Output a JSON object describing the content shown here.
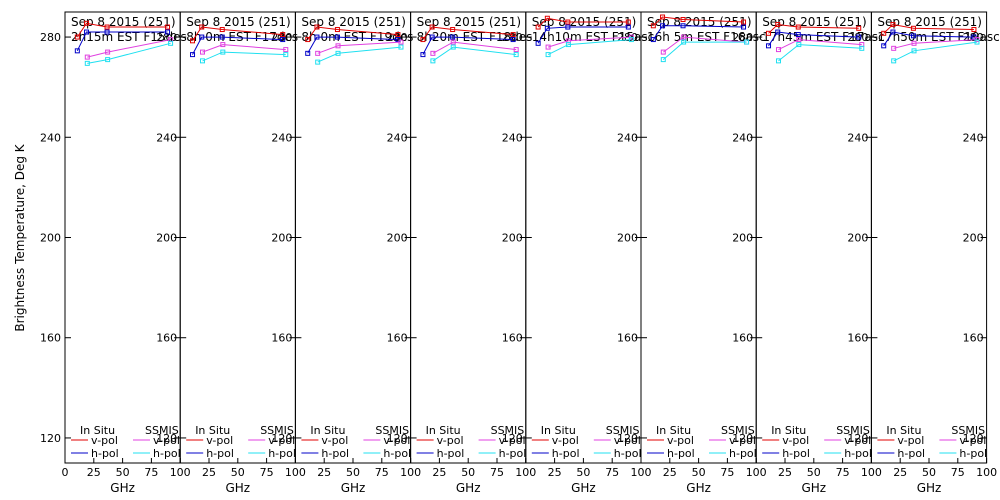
{
  "chart_data": {
    "type": "line",
    "ylabel": "Brightness Temperature, Deg K",
    "xlabel": "GHz",
    "ylim": [
      110,
      290
    ],
    "yticks": [
      120,
      160,
      200,
      240,
      280
    ],
    "xlim": [
      0,
      100
    ],
    "xticks": [
      0,
      25,
      50,
      75,
      100
    ],
    "xtick_labels_first": [
      "0",
      "25",
      "50",
      "75",
      "100"
    ],
    "xtick_labels_other": [
      "25",
      "50",
      "75",
      "100"
    ],
    "legend": {
      "header_left": "In Situ",
      "header_right": "SSMIS",
      "entries": [
        {
          "label": "v-pol",
          "group": "insitu",
          "color": "#e00000"
        },
        {
          "label": "h-pol",
          "group": "insitu",
          "color": "#0000c8"
        },
        {
          "label": "v-pol",
          "group": "ssmis",
          "color": "#e040e0"
        },
        {
          "label": "h-pol",
          "group": "ssmis",
          "color": "#20e0f0"
        }
      ]
    },
    "colors": {
      "insitu_v": "#e00000",
      "insitu_h": "#0000c8",
      "ssmis_v": "#e040e0",
      "ssmis_h": "#20e0f0"
    },
    "panels": [
      {
        "title_line1": "Sep 8 2015 (251)",
        "title_line2": "2h15m  EST  F15des",
        "series": [
          {
            "key": "insitu_v",
            "x": [
              10.7,
              18.7,
              36.5,
              89
            ],
            "y": [
              280,
              285.5,
              284,
              284
            ]
          },
          {
            "key": "insitu_h",
            "x": [
              10.7,
              18.7,
              36.5,
              89
            ],
            "y": [
              274.5,
              282,
              282,
              282
            ]
          },
          {
            "key": "ssmis_v",
            "x": [
              19.35,
              37,
              91.65
            ],
            "y": [
              272,
              274,
              279
            ]
          },
          {
            "key": "ssmis_h",
            "x": [
              19.35,
              37,
              91.65
            ],
            "y": [
              269.5,
              271,
              277.5
            ]
          }
        ]
      },
      {
        "title_line1": "Sep 8 2015 (251)",
        "title_line2": "8h 0m  EST  F17des",
        "series": [
          {
            "key": "insitu_v",
            "x": [
              10.7,
              18.7,
              36.5,
              89
            ],
            "y": [
              278.5,
              284,
              283,
              281
            ]
          },
          {
            "key": "insitu_h",
            "x": [
              10.7,
              18.7,
              36.5,
              89
            ],
            "y": [
              273,
              280,
              280,
              279
            ]
          },
          {
            "key": "ssmis_v",
            "x": [
              19.35,
              37,
              91.65
            ],
            "y": [
              274,
              277,
              275
            ]
          },
          {
            "key": "ssmis_h",
            "x": [
              19.35,
              37,
              91.65
            ],
            "y": [
              270.5,
              274,
              273
            ]
          }
        ]
      },
      {
        "title_line1": "Sep 8 2015 (251)",
        "title_line2": "8h 0m  EST  F19des",
        "series": [
          {
            "key": "insitu_v",
            "x": [
              10.7,
              18.7,
              36.5,
              89
            ],
            "y": [
              279,
              284,
              283,
              281
            ]
          },
          {
            "key": "insitu_h",
            "x": [
              10.7,
              18.7,
              36.5,
              89
            ],
            "y": [
              273.5,
              280,
              280,
              279
            ]
          },
          {
            "key": "ssmis_v",
            "x": [
              19.35,
              37,
              91.65
            ],
            "y": [
              273.5,
              276.5,
              278
            ]
          },
          {
            "key": "ssmis_h",
            "x": [
              19.35,
              37,
              91.65
            ],
            "y": [
              270,
              273.5,
              276
            ]
          }
        ]
      },
      {
        "title_line1": "Sep 8 2015 (251)",
        "title_line2": "8h20m  EST  F18des",
        "series": [
          {
            "key": "insitu_v",
            "x": [
              10.7,
              18.7,
              36.5,
              89
            ],
            "y": [
              279,
              284,
              283,
              281
            ]
          },
          {
            "key": "insitu_h",
            "x": [
              10.7,
              18.7,
              36.5,
              89
            ],
            "y": [
              273,
              280,
              280,
              279
            ]
          },
          {
            "key": "ssmis_v",
            "x": [
              19.35,
              37,
              91.65
            ],
            "y": [
              273.5,
              278,
              275
            ]
          },
          {
            "key": "ssmis_h",
            "x": [
              19.35,
              37,
              91.65
            ],
            "y": [
              270.5,
              276,
              273
            ]
          }
        ]
      },
      {
        "title_line1": "Sep 8 2015 (251)",
        "title_line2": "14h10m  EST  F15asc",
        "series": [
          {
            "key": "insitu_v",
            "x": [
              10.7,
              18.7,
              36.5,
              89
            ],
            "y": [
              284,
              287.5,
              286,
              286
            ]
          },
          {
            "key": "insitu_h",
            "x": [
              10.7,
              18.7,
              36.5,
              89
            ],
            "y": [
              277.5,
              283.5,
              284,
              284
            ]
          },
          {
            "key": "ssmis_v",
            "x": [
              19.35,
              37,
              91.65
            ],
            "y": [
              276,
              278.5,
              280
            ]
          },
          {
            "key": "ssmis_h",
            "x": [
              19.35,
              37,
              91.65
            ],
            "y": [
              273,
              277,
              279
            ]
          }
        ]
      },
      {
        "title_line1": "Sep 8 2015 (251)",
        "title_line2": "16h 5m  EST  F16asc",
        "series": [
          {
            "key": "insitu_v",
            "x": [
              10.7,
              18.7,
              36.5,
              89
            ],
            "y": [
              284.5,
              288,
              287,
              286
            ]
          },
          {
            "key": "insitu_h",
            "x": [
              10.7,
              18.7,
              36.5,
              89
            ],
            "y": [
              279,
              284.5,
              284.5,
              284
            ]
          },
          {
            "key": "ssmis_v",
            "x": [
              19.35,
              37,
              91.65
            ],
            "y": [
              274,
              280,
              278
            ]
          },
          {
            "key": "ssmis_h",
            "x": [
              19.35,
              37,
              91.65
            ],
            "y": [
              271,
              278,
              278
            ]
          }
        ]
      },
      {
        "title_line1": "Sep 8 2015 (251)",
        "title_line2": "17h45m  EST  F17asc",
        "series": [
          {
            "key": "insitu_v",
            "x": [
              10.7,
              18.7,
              36.5,
              89
            ],
            "y": [
              281.5,
              285,
              284,
              283.5
            ]
          },
          {
            "key": "insitu_h",
            "x": [
              10.7,
              18.7,
              36.5,
              89
            ],
            "y": [
              276.5,
              282,
              281,
              280
            ]
          },
          {
            "key": "ssmis_v",
            "x": [
              19.35,
              37,
              91.65
            ],
            "y": [
              275,
              279,
              277
            ]
          },
          {
            "key": "ssmis_h",
            "x": [
              19.35,
              37,
              91.65
            ],
            "y": [
              270.5,
              277,
              275.5
            ]
          }
        ]
      },
      {
        "title_line1": "Sep 8 2015 (251)",
        "title_line2": "17h50m  EST  F19asc",
        "series": [
          {
            "key": "insitu_v",
            "x": [
              10.7,
              18.7,
              36.5,
              89
            ],
            "y": [
              281.5,
              285,
              283.5,
              283
            ]
          },
          {
            "key": "insitu_h",
            "x": [
              10.7,
              18.7,
              36.5,
              89
            ],
            "y": [
              276.5,
              282,
              280.5,
              280
            ]
          },
          {
            "key": "ssmis_v",
            "x": [
              19.35,
              37,
              91.65
            ],
            "y": [
              275.5,
              277.5,
              279
            ]
          },
          {
            "key": "ssmis_h",
            "x": [
              19.35,
              37,
              91.65
            ],
            "y": [
              270.5,
              274.5,
              278
            ]
          }
        ]
      }
    ]
  }
}
